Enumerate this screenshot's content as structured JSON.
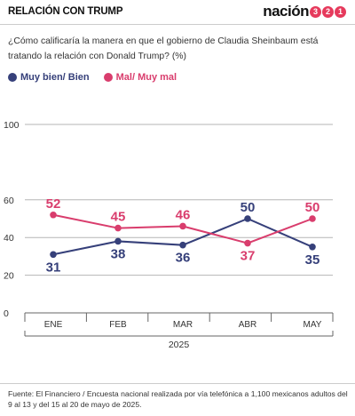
{
  "header": {
    "section_title": "RELACIÓN CON TRUMP",
    "brand_word": "nación",
    "brand_digits": [
      "3",
      "2",
      "1"
    ]
  },
  "question": "¿Cómo calificaría la manera en que el gobierno de Claudia Sheinbaum está tratando la relación con Donald Trump? (%)",
  "source": "Fuente: El Financiero / Encuesta nacional realizada por vía telefónica a 1,100 mexicanos adultos del 9 al 13 y del 15 al 20 de mayo de 2025.",
  "colors": {
    "muy_bien": "#36407a",
    "mal": "#d93d6d",
    "grid": "#b5b5b5",
    "axis": "#666666",
    "brand_accent": "#e63a5c"
  },
  "chart_data": {
    "type": "line",
    "title": "",
    "xlabel": "2025",
    "ylabel": "",
    "categories": [
      "ENE",
      "FEB",
      "MAR",
      "ABR",
      "MAY"
    ],
    "yticks": [
      0,
      20,
      40,
      60,
      100
    ],
    "ylim": [
      0,
      100
    ],
    "grid": true,
    "legend": "top-left",
    "series": [
      {
        "name": "Muy bien/ Bien",
        "color": "#36407a",
        "values": [
          31,
          38,
          36,
          50,
          35
        ]
      },
      {
        "name": "Mal/ Muy mal",
        "color": "#d93d6d",
        "values": [
          52,
          45,
          46,
          37,
          50
        ]
      }
    ]
  }
}
